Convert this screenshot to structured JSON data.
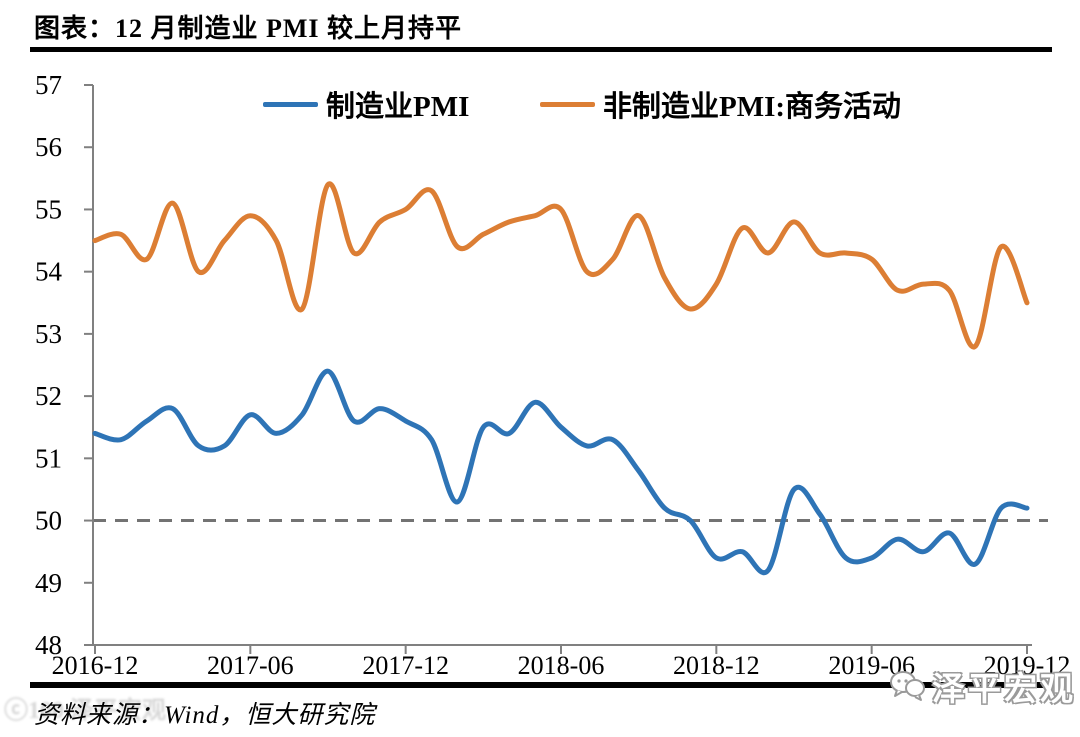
{
  "title": "图表：12 月制造业 PMI 较上月持平",
  "source_note": "资料来源：Wind，恒大研究院",
  "watermark": {
    "text": "泽平宏观",
    "icon": "wechat-icon",
    "left_faint_text": "ⓒ100 泽平宏观"
  },
  "colors": {
    "manufacturing_line": "#2E74B6",
    "non_manufacturing_line": "#DC7E34",
    "axis": "#808080",
    "dashed_baseline": "#737373",
    "text": "#000000"
  },
  "chart_data": {
    "type": "line",
    "title": "图表：12 月制造业 PMI 较上月持平",
    "x_months": [
      "2016-12",
      "2017-01",
      "2017-02",
      "2017-03",
      "2017-04",
      "2017-05",
      "2017-06",
      "2017-07",
      "2017-08",
      "2017-09",
      "2017-10",
      "2017-11",
      "2017-12",
      "2018-01",
      "2018-02",
      "2018-03",
      "2018-04",
      "2018-05",
      "2018-06",
      "2018-07",
      "2018-08",
      "2018-09",
      "2018-10",
      "2018-11",
      "2018-12",
      "2019-01",
      "2019-02",
      "2019-03",
      "2019-04",
      "2019-05",
      "2019-06",
      "2019-07",
      "2019-08",
      "2019-09",
      "2019-10",
      "2019-11",
      "2019-12"
    ],
    "x_tick_labels": [
      "2016-12",
      "2017-06",
      "2017-12",
      "2018-06",
      "2018-12",
      "2019-06",
      "2019-12"
    ],
    "x_tick_indices": [
      0,
      6,
      12,
      18,
      24,
      30,
      36
    ],
    "y_tick_labels": [
      "48",
      "49",
      "50",
      "51",
      "52",
      "53",
      "54",
      "55",
      "56",
      "57"
    ],
    "ylim": [
      48,
      57
    ],
    "baseline": 50,
    "grid": false,
    "legend_position": "top",
    "series": [
      {
        "name": "制造业PMI",
        "color": "#2E74B6",
        "values": [
          51.4,
          51.3,
          51.6,
          51.8,
          51.2,
          51.2,
          51.7,
          51.4,
          51.7,
          52.4,
          51.6,
          51.8,
          51.6,
          51.3,
          50.3,
          51.5,
          51.4,
          51.9,
          51.5,
          51.2,
          51.3,
          50.8,
          50.2,
          50.0,
          49.4,
          49.5,
          49.2,
          50.5,
          50.1,
          49.4,
          49.4,
          49.7,
          49.5,
          49.8,
          49.3,
          50.2,
          50.2
        ]
      },
      {
        "name": "非制造业PMI:商务活动",
        "color": "#DC7E34",
        "values": [
          54.5,
          54.6,
          54.2,
          55.1,
          54.0,
          54.5,
          54.9,
          54.5,
          53.4,
          55.4,
          54.3,
          54.8,
          55.0,
          55.3,
          54.4,
          54.6,
          54.8,
          54.9,
          55.0,
          54.0,
          54.2,
          54.9,
          53.9,
          53.4,
          53.8,
          54.7,
          54.3,
          54.8,
          54.3,
          54.3,
          54.2,
          53.7,
          53.8,
          53.7,
          52.8,
          54.4,
          53.5
        ]
      }
    ]
  }
}
